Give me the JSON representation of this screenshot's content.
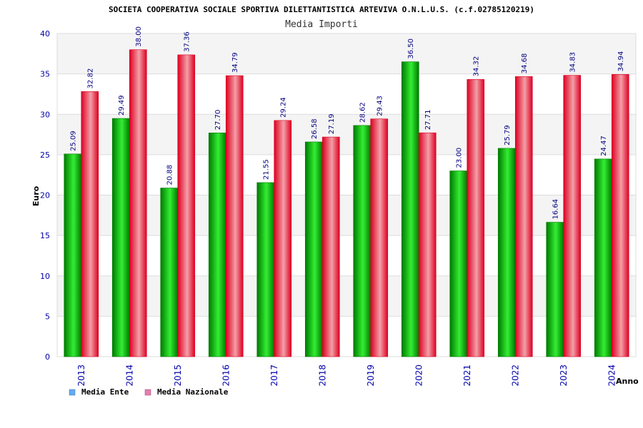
{
  "colors": {
    "ente_dark": "#007a00",
    "ente_light": "#33ee33",
    "naz_dark": "#dd0022",
    "naz_light": "#f3a0a8",
    "legend_ente": "#66aaee",
    "legend_naz": "#e080b0",
    "band": "#f4f4f4",
    "grid": "#dddddd",
    "tick": "#0000aa"
  },
  "chart_data": {
    "type": "bar",
    "title": "SOCIETA COOPERATIVA SOCIALE SPORTIVA DILETTANTISTICA ARTEVIVA O.N.L.U.S. (c.f.02785120219)",
    "subtitle": "Media Importi",
    "xlabel": "Anno",
    "ylabel": "Euro",
    "ylim": [
      0,
      40
    ],
    "yticks": [
      0,
      5,
      10,
      15,
      20,
      25,
      30,
      35,
      40
    ],
    "categories": [
      "2013",
      "2014",
      "2015",
      "2016",
      "2017",
      "2018",
      "2019",
      "2020",
      "2021",
      "2022",
      "2023",
      "2024"
    ],
    "series": [
      {
        "name": "Media Ente",
        "values": [
          25.09,
          29.49,
          20.88,
          27.7,
          21.55,
          26.58,
          28.62,
          36.5,
          23.0,
          25.79,
          16.64,
          24.47
        ],
        "labels": [
          "25.09",
          "29.49",
          "20.88",
          "27.70",
          "21.55",
          "26.58",
          "28.62",
          "36.50",
          "23.00",
          "25.79",
          "16.64",
          "24.47"
        ]
      },
      {
        "name": "Media Nazionale",
        "values": [
          32.82,
          38.0,
          37.36,
          34.79,
          29.24,
          27.19,
          29.43,
          27.71,
          34.32,
          34.68,
          34.83,
          34.94
        ],
        "labels": [
          "32.82",
          "38.00",
          "37.36",
          "34.79",
          "29.24",
          "27.19",
          "29.43",
          "27.71",
          "34.32",
          "34.68",
          "34.83",
          "34.94"
        ]
      }
    ],
    "legend_position": "bottom-left"
  }
}
